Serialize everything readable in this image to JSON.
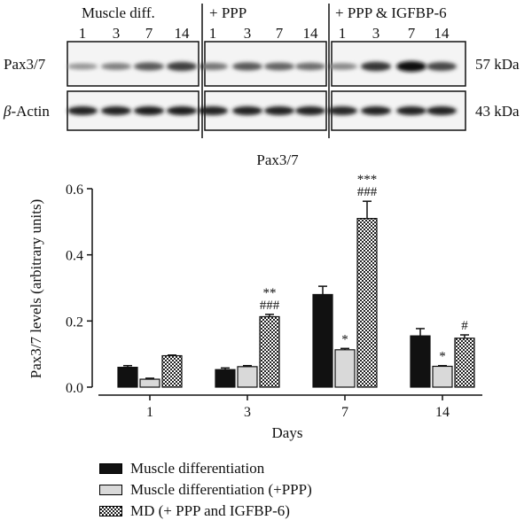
{
  "blot": {
    "groups": [
      {
        "title": "Muscle diff.",
        "lanes": [
          "1",
          "3",
          "7",
          "14"
        ]
      },
      {
        "title": "+ PPP",
        "lanes": [
          "1",
          "3",
          "7",
          "14"
        ]
      },
      {
        "title": "+ PPP & IGFBP-6",
        "lanes": [
          "1",
          "3",
          "7",
          "14"
        ]
      }
    ],
    "rows": [
      {
        "label": "Pax3/7",
        "kda": "57 kDa",
        "intensities": [
          0.28,
          0.4,
          0.6,
          0.75,
          0.45,
          0.6,
          0.55,
          0.5,
          0.35,
          0.8,
          1.0,
          0.7
        ]
      },
      {
        "label_prefix": "β",
        "label_suffix": "-Actin",
        "kda": "43 kDa",
        "intensities": [
          0.9,
          0.9,
          0.92,
          0.92,
          0.9,
          0.9,
          0.9,
          0.9,
          0.88,
          0.9,
          0.9,
          0.9
        ]
      }
    ]
  },
  "chart_data": {
    "type": "bar",
    "title": "Pax3/7",
    "xlabel": "Days",
    "ylabel": "Pax3/7 levels (arbitrary units)",
    "categories": [
      "1",
      "3",
      "7",
      "14"
    ],
    "ylim": [
      0,
      0.6
    ],
    "yticks": [
      "0.0",
      "0.2",
      "0.4",
      "0.6"
    ],
    "grid": false,
    "legend_position": "bottom",
    "series": [
      {
        "name": "Muscle differentiation",
        "fill": "black",
        "values": [
          0.06,
          0.053,
          0.28,
          0.155
        ],
        "errors": [
          0.005,
          0.005,
          0.025,
          0.022
        ],
        "annotations": [
          "",
          "",
          "",
          ""
        ]
      },
      {
        "name": "Muscle differentiation (+PPP)",
        "fill": "gray",
        "values": [
          0.024,
          0.062,
          0.113,
          0.063
        ],
        "errors": [
          0.003,
          0.003,
          0.004,
          0.002
        ],
        "annotations": [
          "",
          "",
          "*",
          "*"
        ]
      },
      {
        "name": "MD (+ PPP and IGFBP-6)",
        "fill": "checker",
        "values": [
          0.095,
          0.213,
          0.51,
          0.148
        ],
        "errors": [
          0.002,
          0.007,
          0.052,
          0.01
        ],
        "annotations": [
          "",
          "**\n###",
          "***\n###",
          "#"
        ]
      }
    ]
  },
  "colors": {
    "black": "#111111",
    "gray": "#d9d9d9",
    "axis": "#111111"
  }
}
